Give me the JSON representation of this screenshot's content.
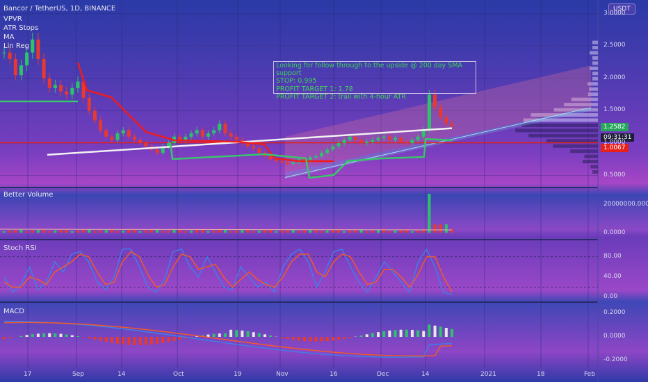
{
  "currency": "USDT",
  "indicators": [
    "VPVR",
    "ATR Stops",
    "MA",
    "Lin Reg"
  ],
  "panes": {
    "volume": "Better Volume",
    "stoch": "Stoch RSI",
    "macd": "MACD"
  },
  "annotation": [
    "Looking for follow through to the upside @ 200 day SMA support",
    "STOP:  0.995",
    "PROFIT TARGET 1: 1.78",
    "PROFIT TARGET 2: trail with 4-hour ATR"
  ],
  "badges": {
    "last": "1.2582",
    "countdown": "09:31:31",
    "line": "1.0067"
  },
  "colors": {
    "up": "#2cc46a",
    "down": "#e8392f",
    "sma": "#f2f2f2",
    "atr_red": "#ee1c1c",
    "atr_green": "#3bc56a",
    "horizontal": "#e8201c",
    "stoch_k": "#3f7ee8",
    "stoch_d": "#f05a2a"
  },
  "chart_data": {
    "type": "candlestick",
    "title": "Bancor / TetherUS, 1D, BINANCE",
    "x_ticks": [
      "17",
      "Sep",
      "14",
      "Oct",
      "19",
      "Nov",
      "16",
      "Dec",
      "14",
      "2021",
      "18",
      "Feb"
    ],
    "price_axis": {
      "ticks": [
        "3.0000",
        "2.5000",
        "2.0000",
        "1.5000",
        "1.0000",
        "0.5000"
      ],
      "ylim": [
        0.4,
        3.05
      ]
    },
    "volume_axis": {
      "ticks": [
        "20000000.0000",
        "0.0000"
      ]
    },
    "stoch_axis": {
      "ticks": [
        "80.00",
        "40.00",
        "0.00"
      ],
      "ylim": [
        0,
        100
      ]
    },
    "macd_axis": {
      "ticks": [
        "0.2000",
        "0.0000",
        "-0.2000"
      ],
      "ylim": [
        -0.25,
        0.25
      ]
    },
    "last_price": 1.2582,
    "horizontal_line": 1.0067,
    "close_series": [
      2.4,
      2.3,
      2.05,
      2.2,
      2.4,
      2.6,
      2.3,
      2.0,
      1.85,
      1.9,
      1.8,
      1.75,
      1.85,
      1.95,
      1.7,
      1.5,
      1.35,
      1.2,
      1.1,
      1.05,
      1.15,
      1.2,
      1.1,
      1.05,
      1.0,
      0.95,
      0.9,
      0.85,
      0.95,
      1.0,
      1.1,
      1.05,
      1.1,
      1.15,
      1.2,
      1.1,
      1.15,
      1.2,
      1.3,
      1.15,
      1.1,
      1.05,
      1.0,
      0.95,
      0.92,
      0.85,
      0.8,
      0.75,
      0.72,
      0.7,
      0.68,
      0.7,
      0.75,
      0.72,
      0.78,
      0.8,
      0.85,
      0.9,
      0.95,
      1.0,
      1.05,
      1.1,
      1.05,
      1.0,
      1.02,
      1.05,
      1.08,
      1.1,
      1.05,
      1.08,
      1.02,
      1.0,
      1.05,
      1.1,
      1.2,
      1.75,
      1.55,
      1.4,
      1.3,
      1.26
    ],
    "sma200": [
      0.82,
      1.23
    ],
    "stoch_k": [
      40,
      10,
      25,
      60,
      15,
      30,
      70,
      50,
      85,
      90,
      70,
      30,
      15,
      40,
      95,
      95,
      60,
      20,
      10,
      35,
      90,
      95,
      60,
      40,
      80,
      50,
      20,
      15,
      60,
      40,
      20,
      30,
      10,
      60,
      85,
      95,
      70,
      20,
      50,
      90,
      95,
      60,
      30,
      10,
      40,
      70,
      50,
      30,
      10,
      70,
      95,
      60,
      10,
      5
    ],
    "stoch_d": [
      30,
      20,
      20,
      40,
      35,
      25,
      50,
      60,
      70,
      85,
      80,
      50,
      25,
      30,
      70,
      90,
      80,
      45,
      20,
      25,
      60,
      85,
      80,
      55,
      60,
      65,
      40,
      20,
      35,
      50,
      35,
      25,
      20,
      40,
      70,
      85,
      85,
      50,
      40,
      70,
      85,
      80,
      50,
      25,
      30,
      55,
      55,
      40,
      20,
      45,
      80,
      80,
      40,
      10
    ]
  }
}
